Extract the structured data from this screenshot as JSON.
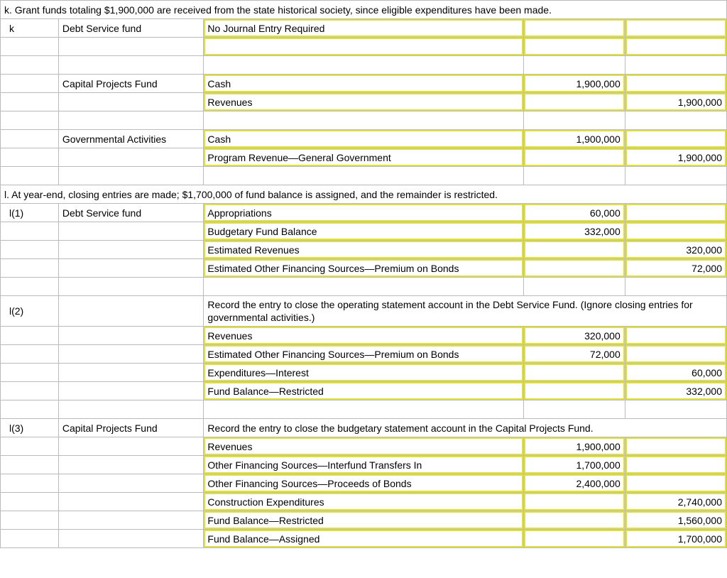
{
  "k_header": "k. Grant funds totaling $1,900,000 are received from the state historical society, since eligible expenditures have been made.",
  "rows_k": [
    {
      "ref": "k",
      "fund": "Debt Service fund",
      "acct": "No Journal Entry Required",
      "a1": "",
      "a2": "",
      "hl": [
        2,
        3,
        4
      ]
    },
    {
      "ref": "",
      "fund": "",
      "acct": "",
      "a1": "",
      "a2": "",
      "hl": [
        2,
        3,
        4
      ]
    },
    {
      "ref": "",
      "fund": "",
      "acct": "",
      "a1": "",
      "a2": "",
      "hl": []
    },
    {
      "ref": "",
      "fund": "Capital Projects Fund",
      "acct": "Cash",
      "a1": "1,900,000",
      "a2": "",
      "hl": [
        2,
        3,
        4
      ]
    },
    {
      "ref": "",
      "fund": "",
      "acct": "Revenues",
      "a1": "",
      "a2": "1,900,000",
      "hl": [
        2,
        3,
        4
      ]
    },
    {
      "ref": "",
      "fund": "",
      "acct": "",
      "a1": "",
      "a2": "",
      "hl": []
    },
    {
      "ref": "",
      "fund": "Governmental Activities",
      "acct": "Cash",
      "a1": "1,900,000",
      "a2": "",
      "hl": [
        2,
        3,
        4
      ]
    },
    {
      "ref": "",
      "fund": "",
      "acct": "Program Revenue—General Government",
      "a1": "",
      "a2": "1,900,000",
      "hl": [
        2,
        3,
        4
      ]
    },
    {
      "ref": "",
      "fund": "",
      "acct": "",
      "a1": "",
      "a2": "",
      "hl": []
    }
  ],
  "l_header": "l. At year-end, closing entries are made; $1,700,000 of fund balance is assigned, and the remainder is restricted.",
  "rows_l1": [
    {
      "ref": "l(1)",
      "fund": "Debt Service fund",
      "acct": "Appropriations",
      "a1": "60,000",
      "a2": "",
      "hl": [
        2,
        3,
        4
      ]
    },
    {
      "ref": "",
      "fund": "",
      "acct": "Budgetary Fund Balance",
      "a1": "332,000",
      "a2": "",
      "hl": [
        2,
        3,
        4
      ]
    },
    {
      "ref": "",
      "fund": "",
      "acct": "Estimated Revenues",
      "a1": "",
      "a2": "320,000",
      "hl": [
        2,
        3,
        4
      ]
    },
    {
      "ref": "",
      "fund": "",
      "acct": "Estimated Other Financing Sources—Premium on Bonds",
      "a1": "",
      "a2": "72,000",
      "hl": [
        2,
        3,
        4
      ]
    },
    {
      "ref": "",
      "fund": "",
      "acct": "",
      "a1": "",
      "a2": "",
      "hl": []
    }
  ],
  "l2_instr": "Record the entry to close the operating statement account in the Debt Service Fund. (Ignore closing entries for governmental activities.)",
  "rows_l2": [
    {
      "ref": "",
      "fund": "",
      "acct": "Revenues",
      "a1": "320,000",
      "a2": "",
      "hl": [
        2,
        3,
        4
      ]
    },
    {
      "ref": "",
      "fund": "",
      "acct": "Estimated Other Financing Sources—Premium on Bonds",
      "a1": "72,000",
      "a2": "",
      "hl": [
        2,
        3,
        4
      ]
    },
    {
      "ref": "",
      "fund": "",
      "acct": "Expenditures—Interest",
      "a1": "",
      "a2": "60,000",
      "hl": [
        2,
        3,
        4
      ]
    },
    {
      "ref": "",
      "fund": "",
      "acct": "Fund Balance—Restricted",
      "a1": "",
      "a2": "332,000",
      "hl": [
        2,
        3,
        4
      ]
    },
    {
      "ref": "",
      "fund": "",
      "acct": "",
      "a1": "",
      "a2": "",
      "hl": []
    }
  ],
  "l3_instr": "Record the entry to close the budgetary statement account in the Capital Projects Fund.",
  "rows_l3": [
    {
      "ref": "",
      "fund": "",
      "acct": "Revenues",
      "a1": "1,900,000",
      "a2": "",
      "hl": [
        2,
        3,
        4
      ]
    },
    {
      "ref": "",
      "fund": "",
      "acct": "Other Financing Sources—Interfund Transfers In",
      "a1": "1,700,000",
      "a2": "",
      "hl": [
        2,
        3,
        4
      ]
    },
    {
      "ref": "",
      "fund": "",
      "acct": "Other Financing Sources—Proceeds of Bonds",
      "a1": "2,400,000",
      "a2": "",
      "hl": [
        2,
        3,
        4
      ]
    },
    {
      "ref": "",
      "fund": "",
      "acct": "Construction Expenditures",
      "a1": "",
      "a2": "2,740,000",
      "hl": [
        2,
        3,
        4
      ]
    },
    {
      "ref": "",
      "fund": "",
      "acct": "Fund Balance—Restricted",
      "a1": "",
      "a2": "1,560,000",
      "hl": [
        2,
        3,
        4
      ]
    },
    {
      "ref": "",
      "fund": "",
      "acct": "Fund Balance—Assigned",
      "a1": "",
      "a2": "1,700,000",
      "hl": [
        2,
        3,
        4
      ]
    }
  ],
  "l2_ref": "l(2)",
  "l3_ref": "l(3)",
  "l3_fund": "Capital Projects Fund"
}
